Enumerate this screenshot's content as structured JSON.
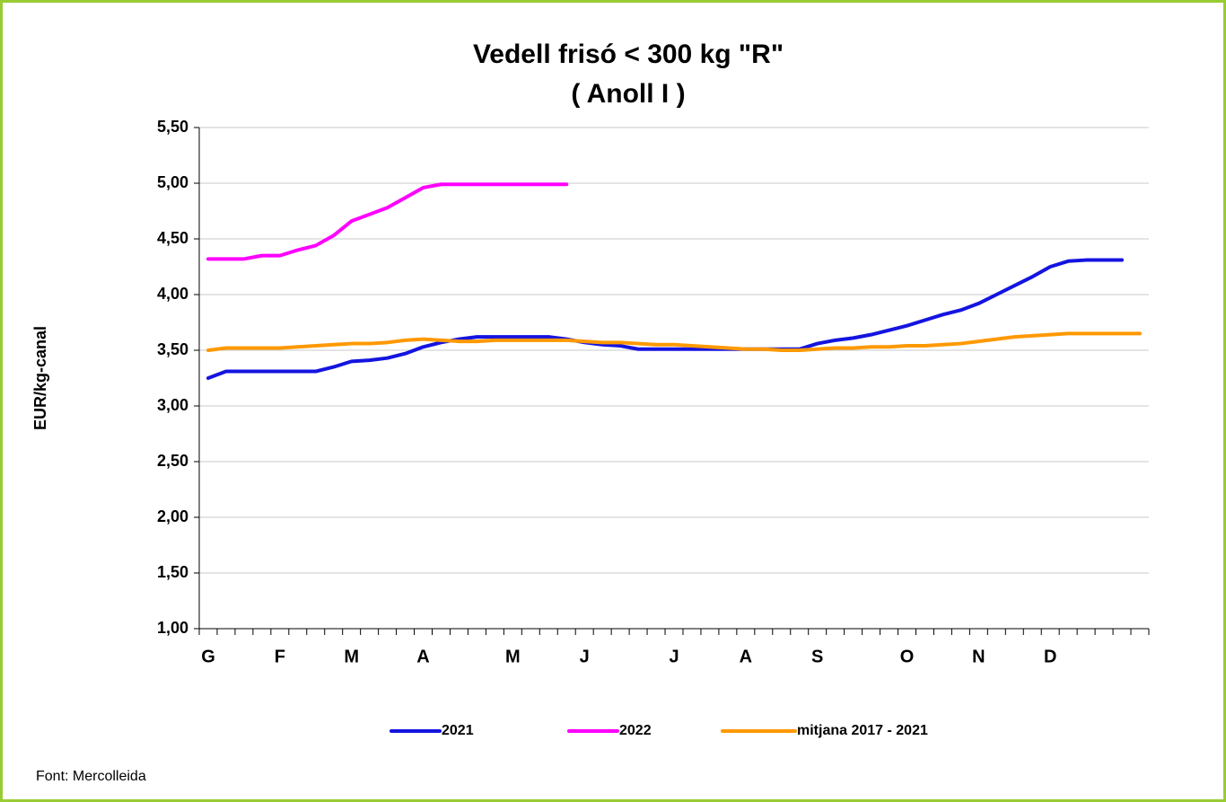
{
  "chart_data": {
    "type": "line",
    "title": "Vedell frisó < 300 kg \"R\"",
    "subtitle": "( Anoll  I )",
    "y_label": "EUR/kg-canal",
    "source": "Font: Mercolleida",
    "categories": [
      "G",
      null,
      null,
      null,
      "F",
      null,
      null,
      null,
      "M",
      null,
      null,
      null,
      "A",
      null,
      null,
      null,
      null,
      "M",
      null,
      null,
      null,
      "J",
      null,
      null,
      null,
      null,
      "J",
      null,
      null,
      null,
      "A",
      null,
      null,
      null,
      "S",
      null,
      null,
      null,
      null,
      "O",
      null,
      null,
      null,
      "N",
      null,
      null,
      null,
      "D",
      null,
      null,
      null,
      null,
      null
    ],
    "series": [
      {
        "name": "2021",
        "color": "#1414e0",
        "values": [
          3.25,
          3.31,
          3.31,
          3.31,
          3.31,
          3.31,
          3.31,
          3.35,
          3.4,
          3.41,
          3.43,
          3.47,
          3.53,
          3.57,
          3.6,
          3.62,
          3.62,
          3.62,
          3.62,
          3.62,
          3.6,
          3.57,
          3.55,
          3.54,
          3.51,
          3.51,
          3.51,
          3.51,
          3.51,
          3.51,
          3.51,
          3.51,
          3.51,
          3.51,
          3.56,
          3.59,
          3.61,
          3.64,
          3.68,
          3.72,
          3.77,
          3.82,
          3.86,
          3.92,
          4.0,
          4.08,
          4.16,
          4.25,
          4.3,
          4.31,
          4.31,
          4.31,
          null
        ]
      },
      {
        "name": "2022",
        "color": "#ff00ff",
        "values": [
          4.32,
          4.32,
          4.32,
          4.35,
          4.35,
          4.4,
          4.44,
          4.53,
          4.66,
          4.72,
          4.78,
          4.87,
          4.96,
          4.99,
          4.99,
          4.99,
          4.99,
          4.99,
          4.99,
          4.99,
          4.99,
          null,
          null,
          null,
          null,
          null,
          null,
          null,
          null,
          null,
          null,
          null,
          null,
          null,
          null,
          null,
          null,
          null,
          null,
          null,
          null,
          null,
          null,
          null,
          null,
          null,
          null,
          null,
          null,
          null,
          null,
          null,
          null
        ]
      },
      {
        "name": "mitjana 2017 - 2021",
        "color": "#ff9900",
        "values": [
          3.5,
          3.52,
          3.52,
          3.52,
          3.52,
          3.53,
          3.54,
          3.55,
          3.56,
          3.56,
          3.57,
          3.59,
          3.6,
          3.59,
          3.58,
          3.58,
          3.59,
          3.59,
          3.59,
          3.59,
          3.59,
          3.58,
          3.57,
          3.57,
          3.56,
          3.55,
          3.55,
          3.54,
          3.53,
          3.52,
          3.51,
          3.51,
          3.5,
          3.5,
          3.51,
          3.52,
          3.52,
          3.53,
          3.53,
          3.54,
          3.54,
          3.55,
          3.56,
          3.58,
          3.6,
          3.62,
          3.63,
          3.64,
          3.65,
          3.65,
          3.65,
          3.65,
          3.65
        ]
      }
    ],
    "ylim": [
      1,
      5.5
    ],
    "yticks": [
      {
        "value": 1,
        "label": "1,00"
      },
      {
        "value": 1.5,
        "label": "1,50"
      },
      {
        "value": 2,
        "label": "2,00"
      },
      {
        "value": 2.5,
        "label": "2,50"
      },
      {
        "value": 3,
        "label": "3,00"
      },
      {
        "value": 3.5,
        "label": "3,50"
      },
      {
        "value": 4,
        "label": "4,00"
      },
      {
        "value": 4.5,
        "label": "4,50"
      },
      {
        "value": 5,
        "label": "5,00"
      },
      {
        "value": 5.5,
        "label": "5,50"
      }
    ],
    "grid": true,
    "legend": "bottom"
  }
}
